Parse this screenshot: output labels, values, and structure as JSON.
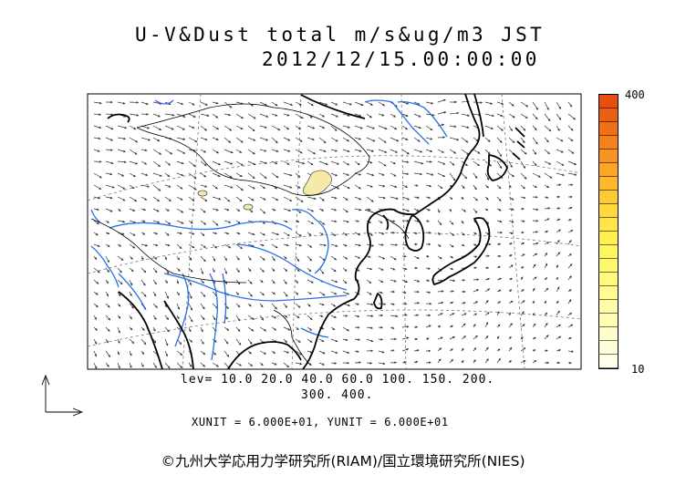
{
  "title_line1": "U-V&Dust total m/s&ug/m3 JST",
  "title_line2": "2012/12/15.00:00:00",
  "levels_line1": "lev= 10.0 20.0 40.0 60.0 100. 150. 200.",
  "levels_line2": "300. 400.",
  "units_line": "XUNIT = 6.000E+01, YUNIT = 6.000E+01",
  "colorbar": {
    "max_label": "400",
    "min_label": "10",
    "colors": [
      "#e84e0f",
      "#ec5f12",
      "#f07015",
      "#f58219",
      "#f8941f",
      "#fba625",
      "#fdb82c",
      "#ffc934",
      "#ffd83c",
      "#ffe545",
      "#fff04f",
      "#fff65c",
      "#fff86c",
      "#fffa7e",
      "#fffb90",
      "#fffca3",
      "#fffcb6",
      "#fffdc9",
      "#fffedb",
      "#ffffea"
    ]
  },
  "copyright": "©九州大学応用力学研究所(RIAM)/国立環境研究所(NIES)",
  "colors": {
    "river": "#2a6ee8",
    "dust_light": "#f6eaa8",
    "coast": "#000000"
  }
}
